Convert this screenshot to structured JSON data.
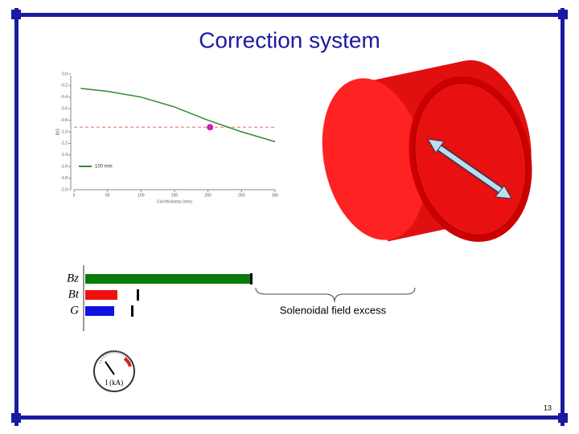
{
  "title": "Correction system",
  "slide_number": "13",
  "annotation": "Solenoidal field excess",
  "gauge_label": "I (kA)",
  "chart_data": [
    {
      "type": "line",
      "x": [
        10,
        50,
        100,
        150,
        200,
        250,
        300
      ],
      "series": [
        {
          "name": "100 mm",
          "color": "#2e8b2e",
          "values": [
            -0.25,
            -0.3,
            -0.4,
            -0.57,
            -0.8,
            -1.0,
            -1.17
          ]
        }
      ],
      "reference_line": {
        "value": -0.92,
        "color": "#e07060"
      },
      "highlight": {
        "x": 203,
        "y": -0.92,
        "color": "#d020b0"
      },
      "xlabel": "Coil thickness (mm)",
      "ylabel": "B/G",
      "xlim": [
        0,
        300
      ],
      "ylim": [
        -2,
        0
      ],
      "xticks": [
        0,
        50,
        100,
        150,
        200,
        250,
        300
      ],
      "yticks": [
        {
          "value": 0,
          "label": "0.0"
        },
        -0.2,
        -0.4,
        -0.6,
        -0.8,
        {
          "value": -1,
          "label": "-1.0"
        },
        -1.2,
        -1.4,
        -1.6,
        -1.8,
        {
          "value": -2,
          "label": "-2.0"
        }
      ]
    },
    {
      "type": "hbar",
      "categories": [
        "Bz",
        "Bt",
        "G"
      ],
      "values": [
        206,
        40,
        36
      ],
      "limits": [
        206,
        65,
        58
      ],
      "colors": [
        "#0a7a0a",
        "#f01010",
        "#1010e0"
      ],
      "xlim": [
        0,
        206
      ]
    }
  ]
}
